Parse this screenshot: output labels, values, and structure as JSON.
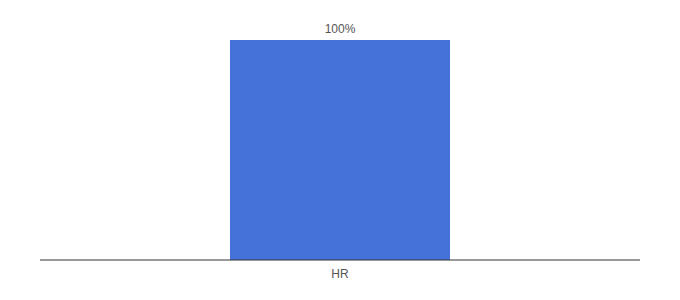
{
  "chart_data": {
    "type": "bar",
    "categories": [
      "HR"
    ],
    "values": [
      100
    ],
    "value_labels": [
      "100%"
    ],
    "color": "#4472d8",
    "ylim": [
      0,
      100
    ],
    "data_labels": true,
    "tick_labels": "x",
    "grid": false
  }
}
